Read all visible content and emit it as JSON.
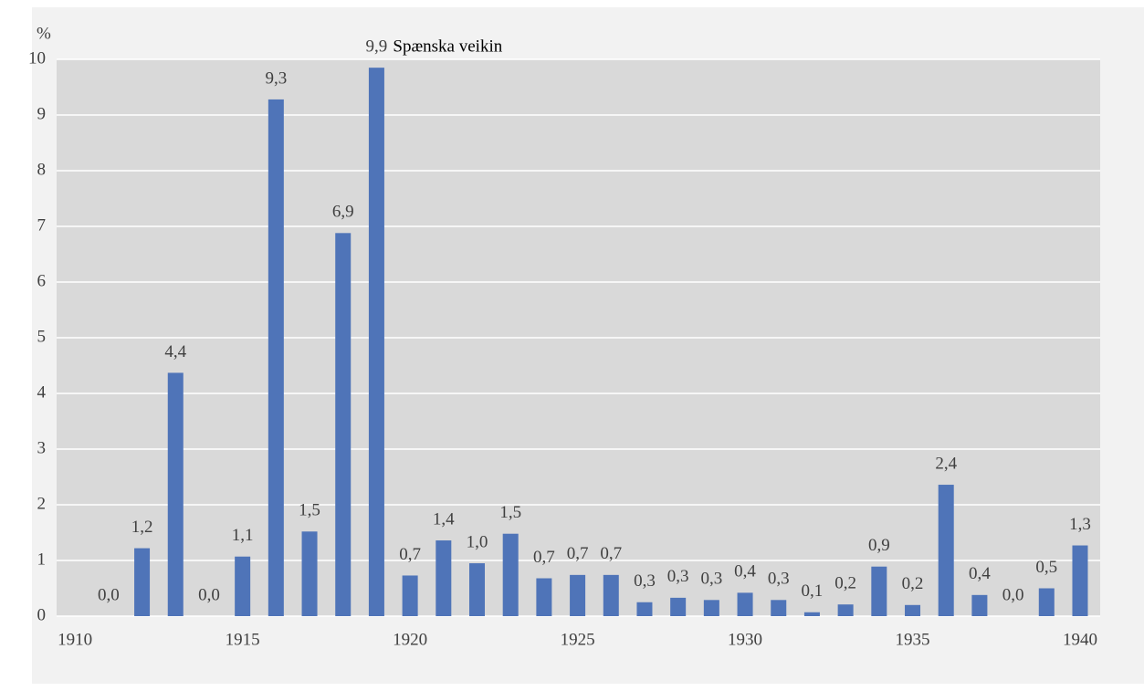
{
  "chart_data": {
    "type": "bar",
    "y_label": "%",
    "x": [
      1911,
      1912,
      1913,
      1914,
      1915,
      1916,
      1917,
      1918,
      1919,
      1920,
      1921,
      1922,
      1923,
      1924,
      1925,
      1926,
      1927,
      1928,
      1929,
      1930,
      1931,
      1932,
      1933,
      1934,
      1935,
      1936,
      1937,
      1938,
      1939,
      1940
    ],
    "values": [
      0,
      1.22,
      4.37,
      0,
      1.07,
      9.28,
      1.52,
      6.88,
      9.85,
      0.73,
      1.36,
      0.95,
      1.48,
      0.68,
      0.74,
      0.74,
      0.25,
      0.33,
      0.29,
      0.42,
      0.29,
      0.07,
      0.21,
      0.89,
      0.2,
      2.36,
      0.38,
      0,
      0.5,
      1.27
    ],
    "value_labels": [
      "0,0",
      "1,2",
      "4,4",
      "0,0",
      "1,1",
      "9,3",
      "1,5",
      "6,9",
      "9,9",
      "0,7",
      "1,4",
      "1,0",
      "1,5",
      "0,7",
      "0,7",
      "0,7",
      "0,3",
      "0,3",
      "0,3",
      "0,4",
      "0,3",
      "0,1",
      "0,2",
      "0,9",
      "0,2",
      "2,4",
      "0,4",
      "0,0",
      "0,5",
      "1,3"
    ],
    "annotations": [
      {
        "x": 1919,
        "text": "Spænska veikin"
      }
    ],
    "color": "#4f74b8",
    "xlim": [
      1909.45,
      1940.6
    ],
    "xticks": [
      1910,
      1915,
      1920,
      1925,
      1930,
      1935,
      1940
    ],
    "ylim": [
      0,
      10
    ],
    "yticks": [
      0,
      1,
      2,
      3,
      4,
      5,
      6,
      7,
      8,
      9,
      10
    ],
    "grid": true
  }
}
